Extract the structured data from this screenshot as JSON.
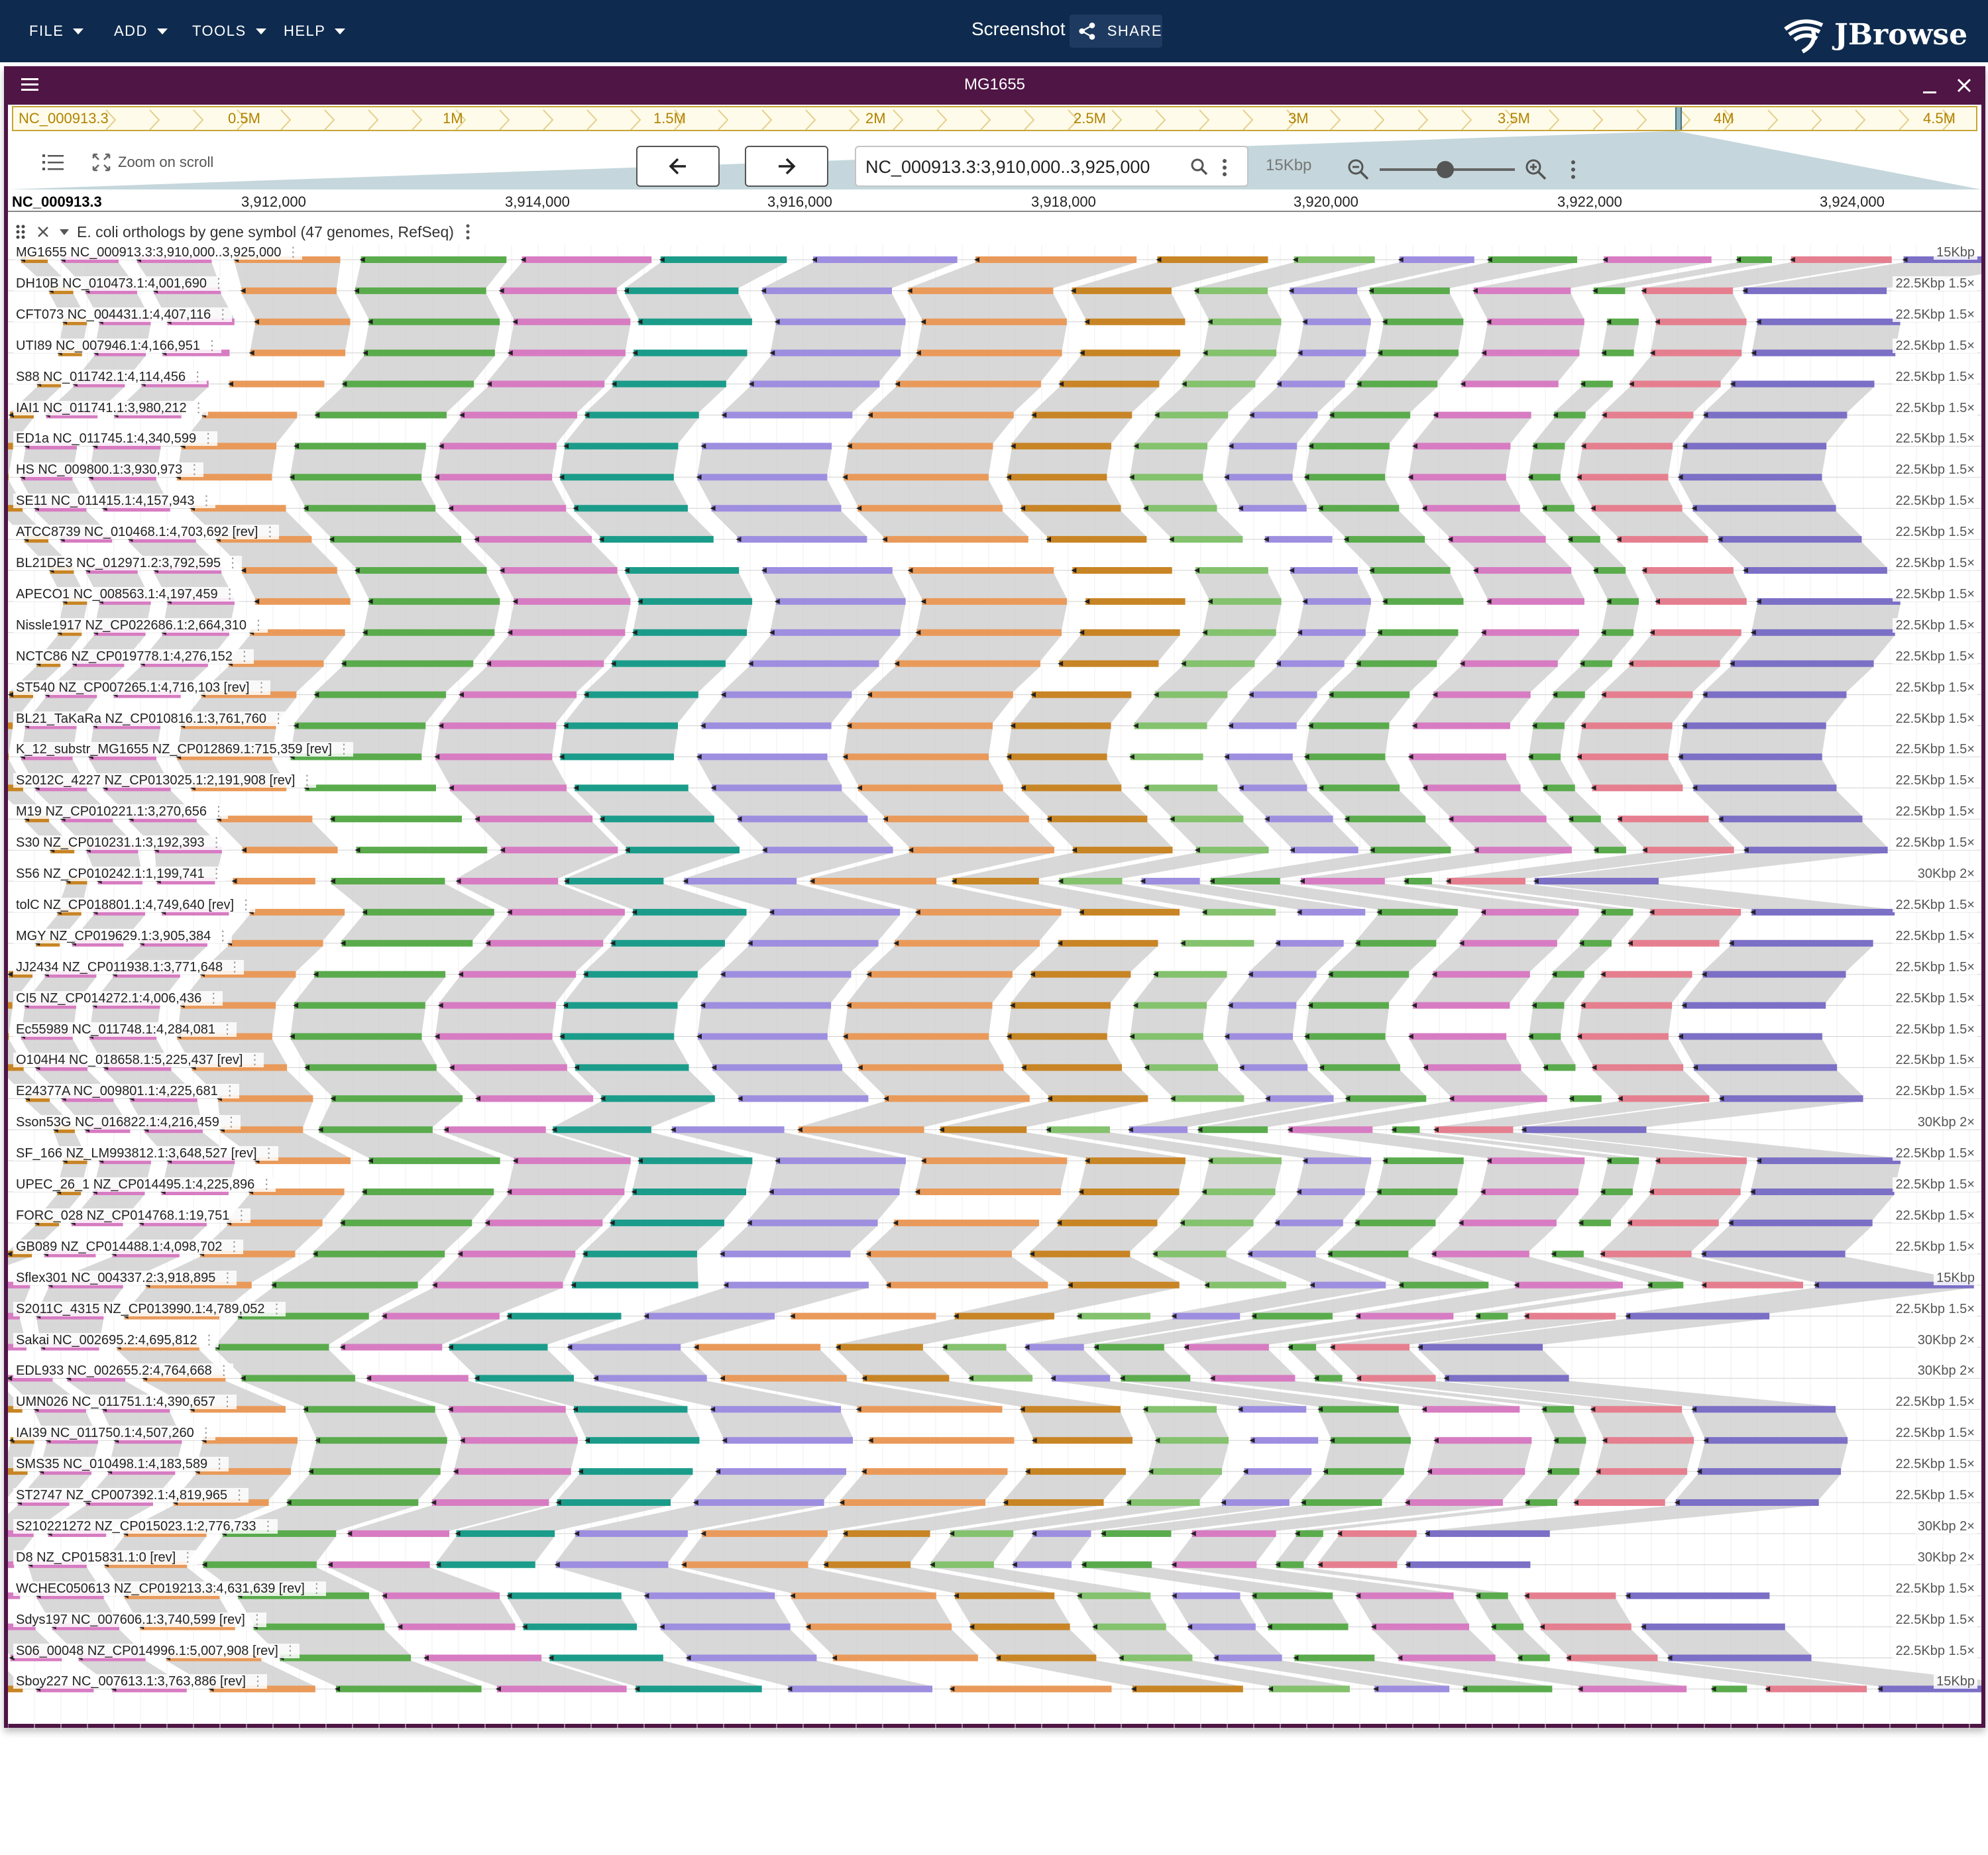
{
  "app": {
    "menus": [
      "FILE",
      "ADD",
      "TOOLS",
      "HELP"
    ],
    "screenshot_label": "Screenshot",
    "share_label": "SHARE",
    "logo_text": "JBrowse"
  },
  "view": {
    "title": "MG1655",
    "overview": {
      "ref_name": "NC_000913.3",
      "labels": [
        "0.5M",
        "1M",
        "1.5M",
        "2M",
        "2.5M",
        "3M",
        "3.5M",
        "4M",
        "4.5M"
      ]
    },
    "toolbar": {
      "zoom_on_scroll": "Zoom on scroll",
      "locstring": "NC_000913.3:3,910,000..3,925,000",
      "bp_per_px": "15Kbp"
    },
    "ruler": {
      "ref_name": "NC_000913.3",
      "ticks": [
        "3,912,000",
        "3,914,000",
        "3,916,000",
        "3,918,000",
        "3,920,000",
        "3,922,000",
        "3,924,000"
      ]
    },
    "track": {
      "title": "E. coli orthologs by gene symbol (47 genomes, RefSeq)"
    },
    "rows": [
      {
        "label": "MG1655 NC_000913.3:3,910,000..3,925,000",
        "scale": "15Kbp"
      },
      {
        "label": "DH10B NC_010473.1:4,001,690",
        "scale": "22.5Kbp 1.5×"
      },
      {
        "label": "CFT073 NC_004431.1:4,407,116",
        "scale": "22.5Kbp 1.5×"
      },
      {
        "label": "UTI89 NC_007946.1:4,166,951",
        "scale": "22.5Kbp 1.5×"
      },
      {
        "label": "S88 NC_011742.1:4,114,456",
        "scale": "22.5Kbp 1.5×"
      },
      {
        "label": "IAI1 NC_011741.1:3,980,212",
        "scale": "22.5Kbp 1.5×"
      },
      {
        "label": "ED1a NC_011745.1:4,340,599",
        "scale": "22.5Kbp 1.5×"
      },
      {
        "label": "HS NC_009800.1:3,930,973",
        "scale": "22.5Kbp 1.5×"
      },
      {
        "label": "SE11 NC_011415.1:4,157,943",
        "scale": "22.5Kbp 1.5×"
      },
      {
        "label": "ATCC8739 NC_010468.1:4,703,692 [rev]",
        "scale": "22.5Kbp 1.5×"
      },
      {
        "label": "BL21DE3 NC_012971.2:3,792,595",
        "scale": "22.5Kbp 1.5×"
      },
      {
        "label": "APECO1 NC_008563.1:4,197,459",
        "scale": "22.5Kbp 1.5×"
      },
      {
        "label": "Nissle1917 NZ_CP022686.1:2,664,310",
        "scale": "22.5Kbp 1.5×"
      },
      {
        "label": "NCTC86 NZ_CP019778.1:4,276,152",
        "scale": "22.5Kbp 1.5×"
      },
      {
        "label": "ST540 NZ_CP007265.1:4,716,103 [rev]",
        "scale": "22.5Kbp 1.5×"
      },
      {
        "label": "BL21_TaKaRa NZ_CP010816.1:3,761,760",
        "scale": "22.5Kbp 1.5×"
      },
      {
        "label": "K_12_substr_MG1655 NZ_CP012869.1:715,359 [rev]",
        "scale": "22.5Kbp 1.5×"
      },
      {
        "label": "S2012C_4227 NZ_CP013025.1:2,191,908 [rev]",
        "scale": "22.5Kbp 1.5×"
      },
      {
        "label": "M19 NZ_CP010221.1:3,270,656",
        "scale": "22.5Kbp 1.5×"
      },
      {
        "label": "S30 NZ_CP010231.1:3,192,393",
        "scale": "22.5Kbp 1.5×"
      },
      {
        "label": "S56 NZ_CP010242.1:1,199,741",
        "scale": "30Kbp 2×"
      },
      {
        "label": "tolC NZ_CP018801.1:4,749,640 [rev]",
        "scale": "22.5Kbp 1.5×"
      },
      {
        "label": "MGY NZ_CP019629.1:3,905,384",
        "scale": "22.5Kbp 1.5×"
      },
      {
        "label": "JJ2434 NZ_CP011938.1:3,771,648",
        "scale": "22.5Kbp 1.5×"
      },
      {
        "label": "CI5 NZ_CP014272.1:4,006,436",
        "scale": "22.5Kbp 1.5×"
      },
      {
        "label": "Ec55989 NC_011748.1:4,284,081",
        "scale": "22.5Kbp 1.5×"
      },
      {
        "label": "O104H4 NC_018658.1:5,225,437 [rev]",
        "scale": "22.5Kbp 1.5×"
      },
      {
        "label": "E24377A NC_009801.1:4,225,681",
        "scale": "22.5Kbp 1.5×"
      },
      {
        "label": "Sson53G NC_016822.1:4,216,459",
        "scale": "30Kbp 2×"
      },
      {
        "label": "SF_166 NZ_LM993812.1:3,648,527 [rev]",
        "scale": "22.5Kbp 1.5×"
      },
      {
        "label": "UPEC_26_1 NZ_CP014495.1:4,225,896",
        "scale": "22.5Kbp 1.5×"
      },
      {
        "label": "FORC_028 NZ_CP014768.1:19,751",
        "scale": "22.5Kbp 1.5×"
      },
      {
        "label": "GB089 NZ_CP014488.1:4,098,702",
        "scale": "22.5Kbp 1.5×"
      },
      {
        "label": "Sflex301 NC_004337.2:3,918,895",
        "scale": "15Kbp"
      },
      {
        "label": "S2011C_4315 NZ_CP013990.1:4,789,052",
        "scale": "22.5Kbp 1.5×"
      },
      {
        "label": "Sakai NC_002695.2:4,695,812",
        "scale": "30Kbp 2×"
      },
      {
        "label": "EDL933 NC_002655.2:4,764,668",
        "scale": "30Kbp 2×"
      },
      {
        "label": "UMN026 NC_011751.1:4,390,657",
        "scale": "22.5Kbp 1.5×"
      },
      {
        "label": "IAI39 NC_011750.1:4,507,260",
        "scale": "22.5Kbp 1.5×"
      },
      {
        "label": "SMS35 NC_010498.1:4,183,589",
        "scale": "22.5Kbp 1.5×"
      },
      {
        "label": "ST2747 NZ_CP007392.1:4,819,965",
        "scale": "22.5Kbp 1.5×"
      },
      {
        "label": "S210221272 NZ_CP015023.1:2,776,733",
        "scale": "30Kbp 2×"
      },
      {
        "label": "D8 NZ_CP015831.1:0 [rev]",
        "scale": "30Kbp 2×"
      },
      {
        "label": "WCHEC050613 NZ_CP019213.3:4,631,639 [rev]",
        "scale": "22.5Kbp 1.5×"
      },
      {
        "label": "Sdys197 NC_007606.1:3,740,599 [rev]",
        "scale": "22.5Kbp 1.5×"
      },
      {
        "label": "S06_00048 NZ_CP014996.1:5,007,908 [rev]",
        "scale": "22.5Kbp 1.5×"
      },
      {
        "label": "Sboy227 NC_007613.1:3,763,886 [rev]",
        "scale": "15Kbp"
      }
    ],
    "colors": {
      "gene_palette": [
        "#7b6fc6",
        "#9e8ee0",
        "#3f9b3f",
        "#5aab4c",
        "#84c26e",
        "#e57f8f",
        "#1b9c8a",
        "#14a2c4",
        "#e99a5a",
        "#d77cc2",
        "#0a7e86",
        "#c88525",
        "#4aa9d6"
      ],
      "synteny_fill": "#c8c8c8",
      "panel_border": "#4f1545",
      "appbar": "#0e2a4e",
      "overview_border": "#c7a437"
    }
  }
}
